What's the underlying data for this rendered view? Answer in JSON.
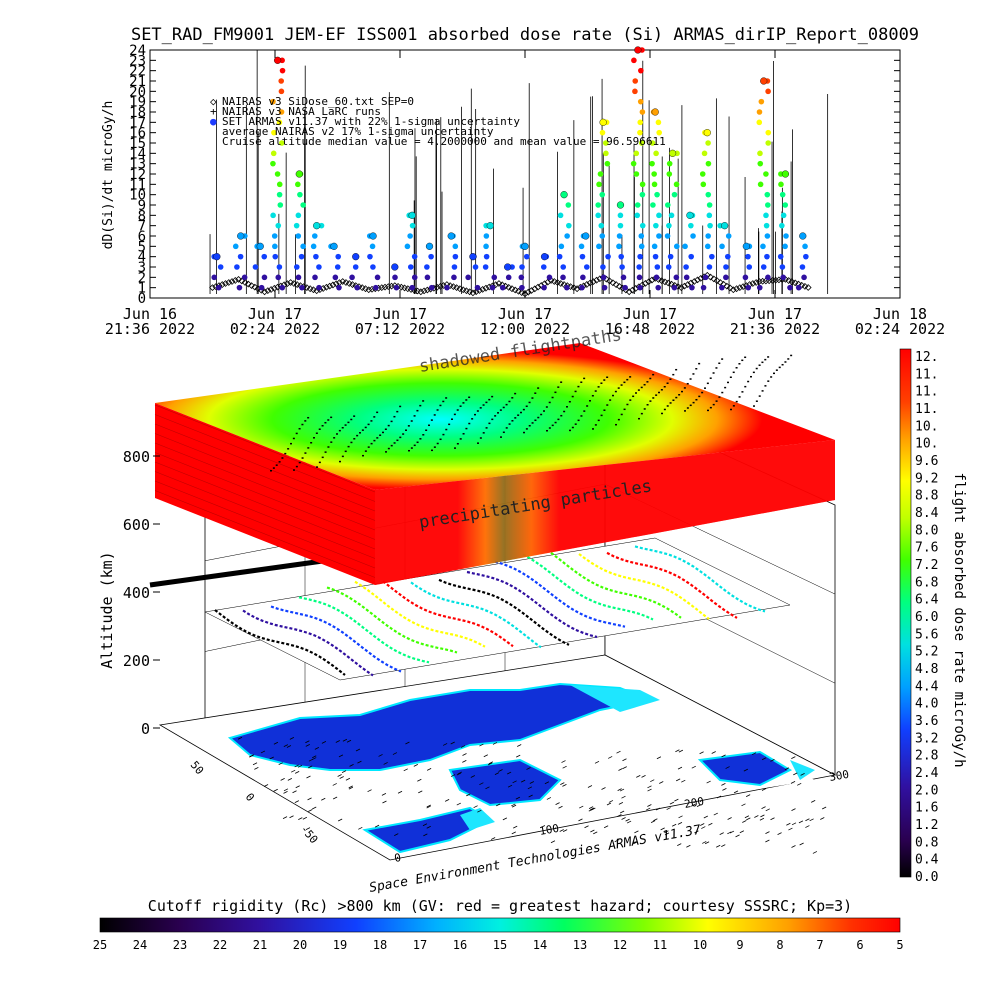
{
  "title": "SET_RAD_FM9001  JEM-EF ISS001 absorbed dose rate (Si) ARMAS_dirIP_Report_08009",
  "colors": {
    "nairas_si": "#000000",
    "armas": "#1e3cff",
    "grid": "#000000",
    "wall": "#ffffff",
    "ocean": "#1ee6ff",
    "land": "#1030d8",
    "layer_hot": "#ff0000",
    "layer_mid": "#00ff40",
    "layer_cold": "#00ffff"
  },
  "top_chart": {
    "ylabel": "dD(Si)/dt microGy/h",
    "yticks": [
      "0",
      "1",
      "2",
      "3",
      "4",
      "5",
      "6",
      "7",
      "8",
      "9",
      "10",
      "11",
      "12",
      "13",
      "14",
      "15",
      "16",
      "17",
      "18",
      "19",
      "20",
      "21",
      "22",
      "23",
      "24"
    ],
    "xticks": [
      {
        "line1": "Jun 16",
        "line2": "21:36 2022"
      },
      {
        "line1": "Jun 17",
        "line2": "02:24 2022"
      },
      {
        "line1": "Jun 17",
        "line2": "07:12 2022"
      },
      {
        "line1": "Jun 17",
        "line2": "12:00 2022"
      },
      {
        "line1": "Jun 17",
        "line2": "16:48 2022"
      },
      {
        "line1": "Jun 17",
        "line2": "21:36 2022"
      },
      {
        "line1": "Jun 18",
        "line2": "02:24 2022"
      }
    ],
    "legend": [
      {
        "symbol": "◇",
        "text": "NAIRAS v3 SiDose_60.txt SEP=0"
      },
      {
        "symbol": "+",
        "text": "NAIRAS v3 NASA LaRC runs"
      },
      {
        "symbol": "●",
        "text": "SET ARMAS v11.37 with 22% 1-sigma uncertainty"
      },
      {
        "symbol": "",
        "text": "average NAIRAS v2 17% 1-sigma uncertainty"
      },
      {
        "symbol": "",
        "text": "Cruise altitude median value = 4.2000000 and mean value = 96.596611"
      }
    ]
  },
  "chart_data": [
    {
      "type": "scatter",
      "title": "SET_RAD_FM9001  JEM-EF ISS001 absorbed dose rate (Si) ARMAS_dirIP_Report_08009",
      "ylabel": "dD(Si)/dt microGy/h",
      "xlabel": "",
      "ylim": [
        0,
        24
      ],
      "xlim": [
        "2022-06-16 21:36",
        "2022-06-18 02:24"
      ],
      "grid": false,
      "legend_position": "top-left",
      "series": [
        {
          "name": "NAIRAS v3 SiDose_60.txt SEP=0",
          "x": [
            "2022-06-17 00:00",
            "2022-06-17 01:00",
            "2022-06-17 02:00",
            "2022-06-17 03:00",
            "2022-06-17 04:00",
            "2022-06-17 05:00",
            "2022-06-17 06:00",
            "2022-06-17 07:00",
            "2022-06-17 08:00",
            "2022-06-17 09:00",
            "2022-06-17 10:00",
            "2022-06-17 11:00",
            "2022-06-17 12:00",
            "2022-06-17 13:00",
            "2022-06-17 14:00",
            "2022-06-17 15:00",
            "2022-06-17 16:00",
            "2022-06-17 17:00",
            "2022-06-17 18:00",
            "2022-06-17 19:00",
            "2022-06-17 20:00",
            "2022-06-17 21:00",
            "2022-06-17 22:00",
            "2022-06-17 23:00"
          ],
          "y": [
            1.0,
            1.8,
            0.6,
            1.5,
            0.7,
            1.6,
            0.8,
            1.2,
            0.6,
            1.3,
            0.5,
            1.4,
            0.4,
            1.7,
            0.9,
            2.0,
            0.6,
            1.9,
            1.0,
            2.2,
            0.8,
            1.6,
            1.8,
            0.9
          ]
        },
        {
          "name": "SET ARMAS v11.37 with 22% 1-sigma uncertainty",
          "x": [
            "2022-06-17 00:10",
            "2022-06-17 01:05",
            "2022-06-17 01:50",
            "2022-06-17 02:30",
            "2022-06-17 03:20",
            "2022-06-17 04:00",
            "2022-06-17 04:40",
            "2022-06-17 05:30",
            "2022-06-17 06:10",
            "2022-06-17 07:00",
            "2022-06-17 07:40",
            "2022-06-17 08:20",
            "2022-06-17 09:10",
            "2022-06-17 10:00",
            "2022-06-17 10:40",
            "2022-06-17 11:20",
            "2022-06-17 12:00",
            "2022-06-17 12:45",
            "2022-06-17 13:30",
            "2022-06-17 14:20",
            "2022-06-17 15:00",
            "2022-06-17 15:40",
            "2022-06-17 16:20",
            "2022-06-17 17:00",
            "2022-06-17 17:40",
            "2022-06-17 18:20",
            "2022-06-17 19:00",
            "2022-06-17 19:40",
            "2022-06-17 20:30",
            "2022-06-17 21:10",
            "2022-06-17 22:00",
            "2022-06-17 22:40"
          ],
          "y": [
            4.0,
            6.0,
            5.0,
            23.0,
            12.0,
            7.0,
            5.0,
            4.0,
            6.0,
            3.0,
            8.0,
            5.0,
            6.0,
            4.0,
            7.0,
            3.0,
            5.0,
            4.0,
            10.0,
            6.0,
            17.0,
            9.0,
            24.0,
            18.0,
            14.0,
            8.0,
            16.0,
            7.0,
            5.0,
            21.0,
            12.0,
            6.0
          ]
        }
      ]
    },
    {
      "type": "heatmap",
      "title": "",
      "zlabel": "flight absorbed dose rate microGy/h",
      "ylabel": "Altitude (km)",
      "zticks": [
        "12.",
        "11.",
        "11.",
        "11.",
        "10.",
        "10.",
        "9.6",
        "9.2",
        "8.8",
        "8.4",
        "8.0",
        "7.6",
        "7.2",
        "6.8",
        "6.4",
        "6.0",
        "5.6",
        "5.2",
        "4.8",
        "4.4",
        "4.0",
        "3.6",
        "3.2",
        "2.8",
        "2.4",
        "2.0",
        "1.6",
        "1.2",
        "0.8",
        "0.4",
        "0.0"
      ],
      "yticks": [
        "0",
        "200",
        "400",
        "600",
        "800"
      ],
      "lat_ticks": [
        "50",
        "0",
        "-50"
      ],
      "lon_ticks": [
        "0",
        "100",
        "200",
        "300"
      ],
      "annotations": [
        "shadowed flightpaths",
        "precipitating particles"
      ],
      "footer": "Space Environment Technologies ARMAS v11.37"
    },
    {
      "type": "bar",
      "title": "Cutoff rigidity (Rc) >800 km (GV: red = greatest hazard; courtesy SSSRC; Kp=3)",
      "categories": [
        "25",
        "24",
        "23",
        "22",
        "21",
        "20",
        "19",
        "18",
        "17",
        "16",
        "15",
        "14",
        "13",
        "12",
        "11",
        "10",
        "9",
        "8",
        "7",
        "6",
        "5"
      ]
    }
  ]
}
